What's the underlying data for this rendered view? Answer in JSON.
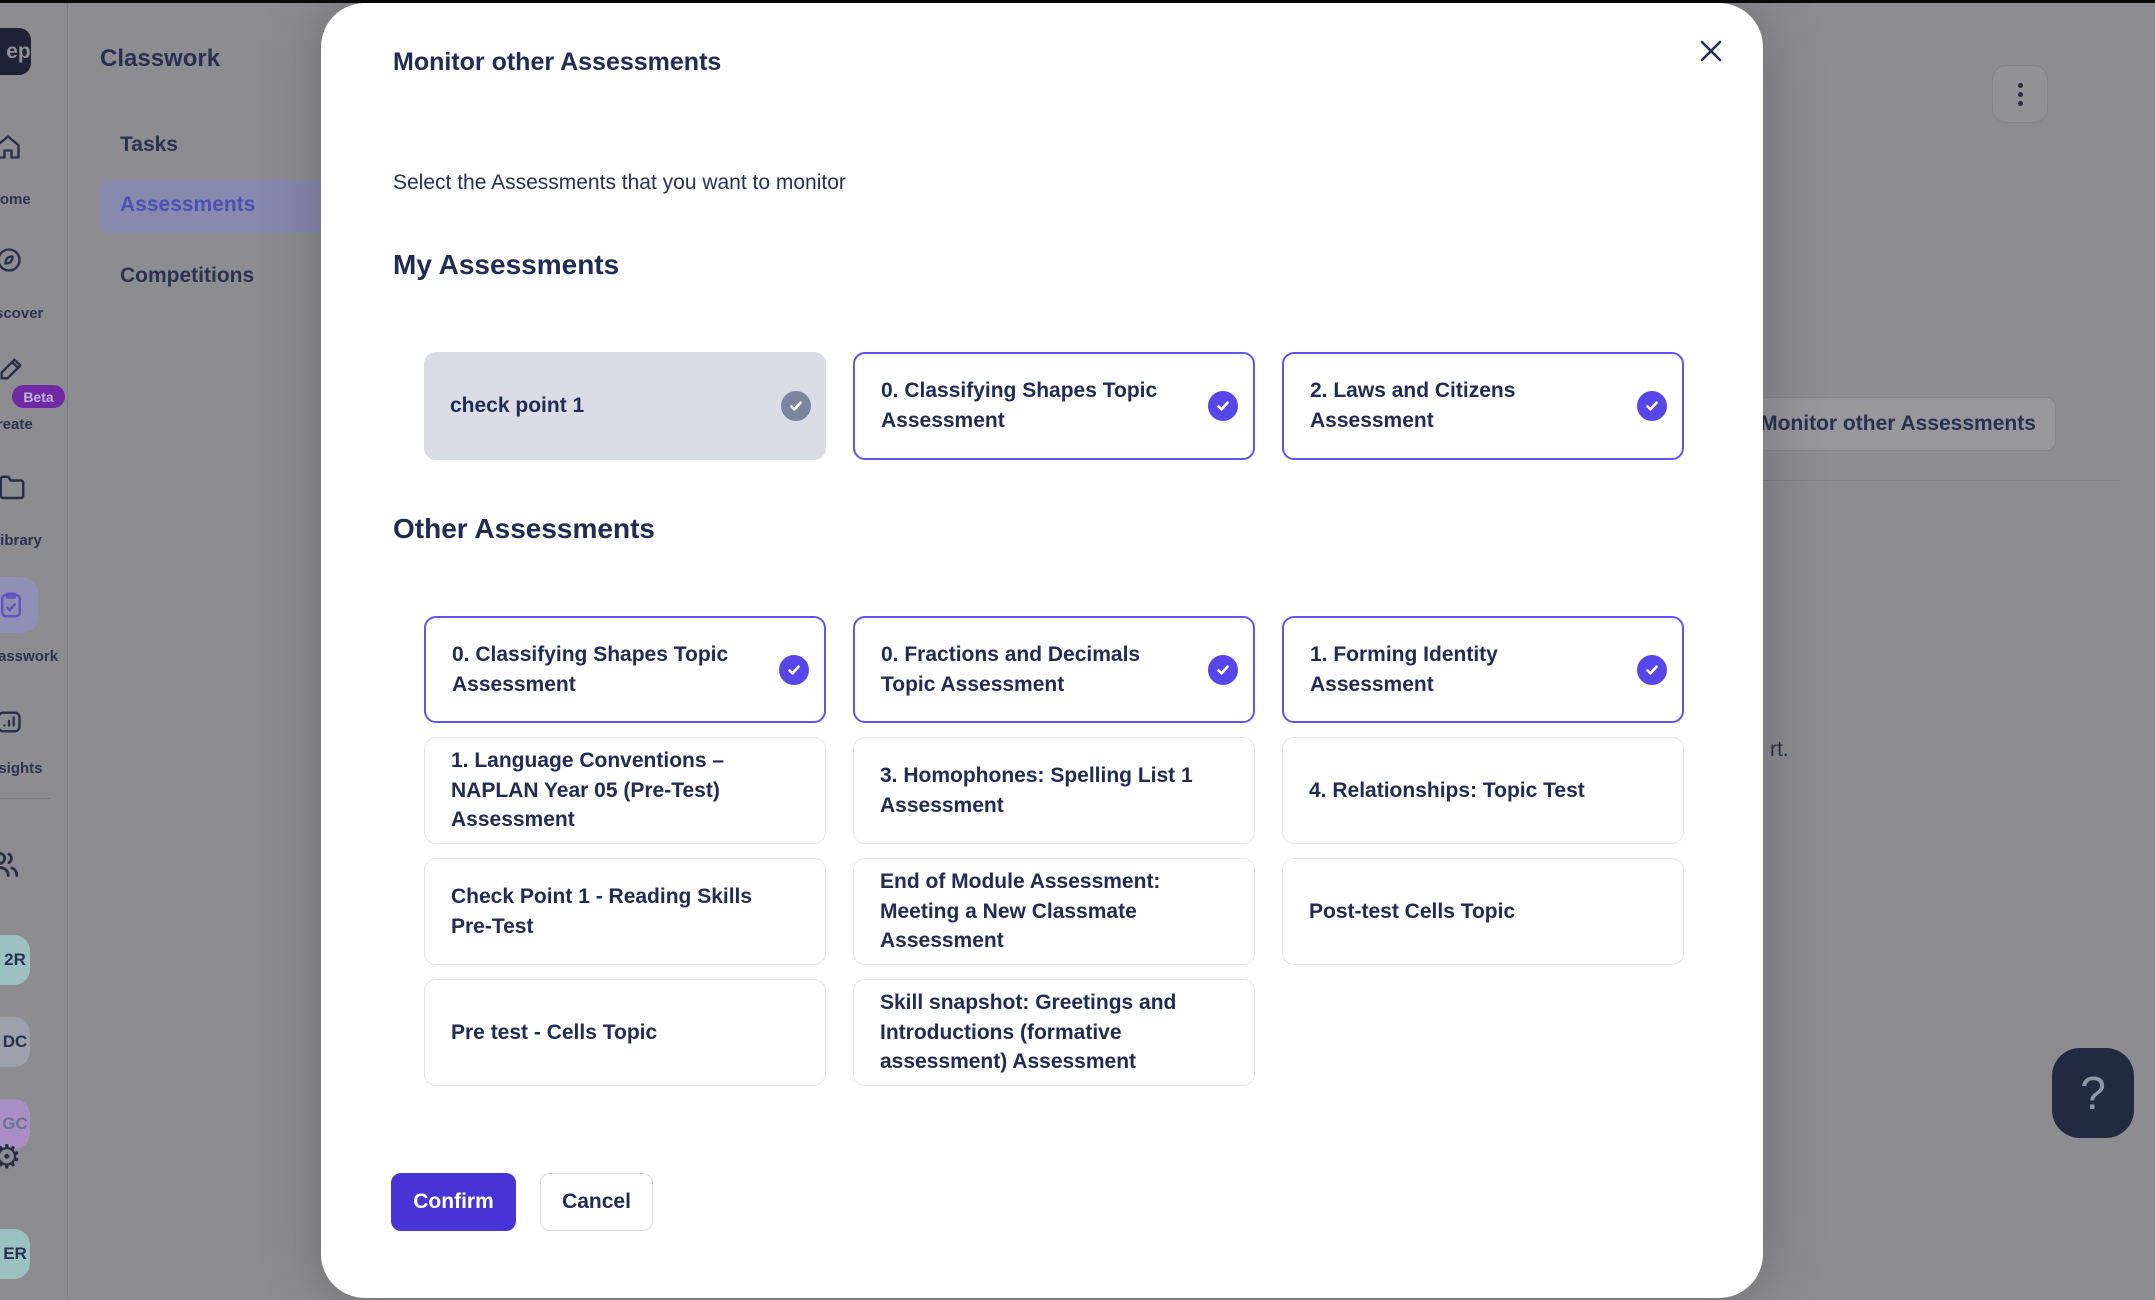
{
  "sidebar": {
    "logo_text": "ep",
    "items": [
      {
        "icon": "home-icon",
        "label": "ome"
      },
      {
        "icon": "discover-icon",
        "label": "cover"
      },
      {
        "icon": "create-icon",
        "label": "eate",
        "badge": "Beta"
      },
      {
        "icon": "library-icon",
        "label": "rary"
      },
      {
        "icon": "classwork-icon",
        "label": "sswork",
        "active": true
      },
      {
        "icon": "insights-icon",
        "label": "ights"
      }
    ],
    "avatars": [
      {
        "text": "2R",
        "color": "#9cc1c1"
      },
      {
        "text": "DC",
        "color": "#9da1ab"
      },
      {
        "text": "GC",
        "color": "#a98fc5"
      },
      {
        "text": "ER",
        "color": "#9cc1c1"
      }
    ]
  },
  "page": {
    "title": "Classwork",
    "tabs": [
      {
        "label": "Tasks",
        "active": false
      },
      {
        "label": "Assessments",
        "active": true
      },
      {
        "label": "Competitions",
        "active": false
      }
    ],
    "monitor_button_label": "Monitor other Assessments",
    "partial_text": "rt.",
    "help_label": "?"
  },
  "modal": {
    "title": "Monitor other Assessments",
    "subtitle": "Select the Assessments that you want to monitor",
    "sections": [
      {
        "heading": "My Assessments",
        "cards": [
          {
            "label": "check point 1",
            "state": "disabled-checked"
          },
          {
            "label": "0. Classifying Shapes Topic Assessment",
            "state": "checked"
          },
          {
            "label": "2. Laws and Citizens Assessment",
            "state": "checked"
          }
        ]
      },
      {
        "heading": "Other Assessments",
        "cards": [
          {
            "label": "0. Classifying Shapes Topic Assessment",
            "state": "checked"
          },
          {
            "label": "0. Fractions and Decimals Topic Assessment",
            "state": "checked"
          },
          {
            "label": "1. Forming Identity Assessment",
            "state": "checked"
          },
          {
            "label": "1. Language Conventions – NAPLAN Year 05 (Pre-Test) Assessment",
            "state": "unchecked"
          },
          {
            "label": "3. Homophones: Spelling List 1 Assessment",
            "state": "unchecked"
          },
          {
            "label": "4. Relationships: Topic Test",
            "state": "unchecked"
          },
          {
            "label": "Check Point 1 - Reading Skills Pre-Test",
            "state": "unchecked"
          },
          {
            "label": "End of Module Assessment: Meeting a New Classmate Assessment",
            "state": "unchecked"
          },
          {
            "label": "Post-test Cells Topic",
            "state": "unchecked"
          },
          {
            "label": "Pre test - Cells Topic",
            "state": "unchecked"
          },
          {
            "label": "Skill snapshot: Greetings and Introductions (formative assessment) Assessment",
            "state": "unchecked"
          }
        ]
      }
    ],
    "confirm_label": "Confirm",
    "cancel_label": "Cancel"
  },
  "colors": {
    "accent_purple": "#5746e8",
    "accent_border": "#6153ef",
    "confirm_bg": "#4834d4",
    "text_navy": "#202c54",
    "disabled_card_bg": "#dadde5",
    "gray_badge": "#7b859d",
    "beta_badge": "#7128a4"
  }
}
